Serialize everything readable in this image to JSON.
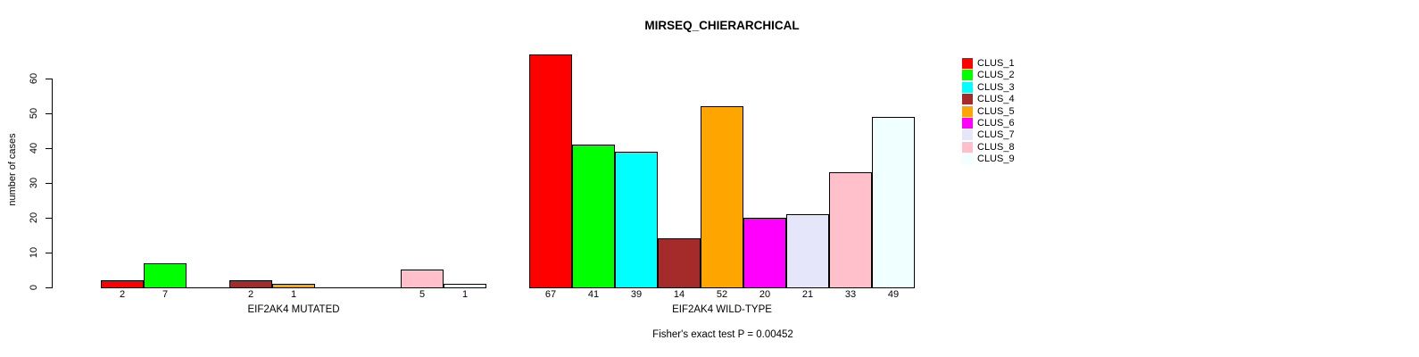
{
  "chart_data": {
    "type": "bar",
    "title": "MIRSEQ_CHIERARCHICAL",
    "ylabel": "number of cases",
    "ylim": [
      0,
      60
    ],
    "yticks": [
      0,
      10,
      20,
      30,
      40,
      50,
      60
    ],
    "grid": false,
    "legend_position": "right",
    "bar_border_color": "#000000",
    "clusters": [
      {
        "name": "CLUS_1",
        "color": "#FF0000"
      },
      {
        "name": "CLUS_2",
        "color": "#00FF00"
      },
      {
        "name": "CLUS_3",
        "color": "#00FFFF"
      },
      {
        "name": "CLUS_4",
        "color": "#A52A2A"
      },
      {
        "name": "CLUS_5",
        "color": "#FFA500"
      },
      {
        "name": "CLUS_6",
        "color": "#FF00FF"
      },
      {
        "name": "CLUS_7",
        "color": "#E6E6FA"
      },
      {
        "name": "CLUS_8",
        "color": "#FFC0CB"
      },
      {
        "name": "CLUS_9",
        "color": "#F0FFFF"
      }
    ],
    "groups": [
      {
        "label": "EIF2AK4 MUTATED",
        "values": [
          2,
          7,
          0,
          2,
          1,
          0,
          0,
          5,
          1
        ]
      },
      {
        "label": "EIF2AK4 WILD-TYPE",
        "values": [
          67,
          41,
          39,
          14,
          52,
          20,
          21,
          33,
          49
        ]
      }
    ],
    "zero_bars_hidden": true,
    "annotation": "Fisher's exact test P = 0.00452"
  }
}
